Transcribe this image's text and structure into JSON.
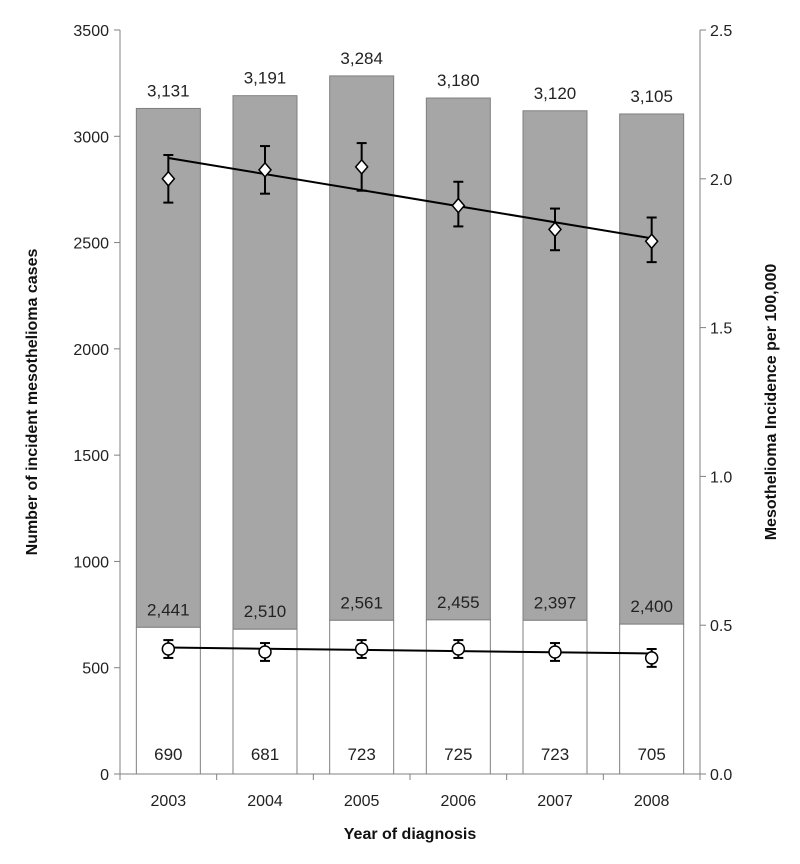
{
  "chart_data": {
    "type": "bar",
    "categories": [
      "2003",
      "2004",
      "2005",
      "2006",
      "2007",
      "2008"
    ],
    "stacked": true,
    "series": [
      {
        "values": [
          690,
          681,
          723,
          725,
          723,
          705
        ],
        "color": "#ffffff"
      },
      {
        "values": [
          2441,
          2510,
          2561,
          2455,
          2397,
          2400
        ],
        "color": "#a6a6a6"
      }
    ],
    "totals": [
      3131,
      3191,
      3284,
      3180,
      3120,
      3105
    ],
    "labels": {
      "bottom": [
        "690",
        "681",
        "723",
        "725",
        "723",
        "705"
      ],
      "upper": [
        "2,441",
        "2,510",
        "2,561",
        "2,455",
        "2,397",
        "2,400"
      ],
      "total": [
        "3,131",
        "3,191",
        "3,284",
        "3,180",
        "3,120",
        "3,105"
      ]
    },
    "incidence_series": [
      {
        "marker": "diamond",
        "values": [
          2.0,
          2.03,
          2.04,
          1.91,
          1.83,
          1.79
        ],
        "lower": [
          1.92,
          1.95,
          1.96,
          1.84,
          1.76,
          1.72
        ],
        "upper": [
          2.08,
          2.11,
          2.12,
          1.99,
          1.9,
          1.87
        ],
        "trend": [
          2.07,
          1.8
        ]
      },
      {
        "marker": "circle",
        "values": [
          0.42,
          0.41,
          0.42,
          0.42,
          0.41,
          0.39
        ],
        "lower": [
          0.39,
          0.38,
          0.39,
          0.39,
          0.38,
          0.36
        ],
        "upper": [
          0.45,
          0.44,
          0.45,
          0.45,
          0.44,
          0.42
        ],
        "trend": [
          0.425,
          0.405
        ]
      }
    ],
    "xlabel": "Year of diagnosis",
    "ylabel_left": "Number of incident mesothelioma cases",
    "ylabel_right": "Mesothelioma Incidence per 100,000",
    "ylim_left": [
      0,
      3500
    ],
    "ylim_right": [
      0.0,
      2.5
    ],
    "yticks_left": [
      0,
      500,
      1000,
      1500,
      2000,
      2500,
      3000,
      3500
    ],
    "yticks_right": [
      "0.0",
      "0.5",
      "1.0",
      "1.5",
      "2.0",
      "2.5"
    ],
    "grid": false,
    "colors": {
      "bar_fill": "#a6a6a6",
      "bar_edge": "#7f7f7f",
      "axis": "#808080",
      "line": "#000000"
    }
  }
}
